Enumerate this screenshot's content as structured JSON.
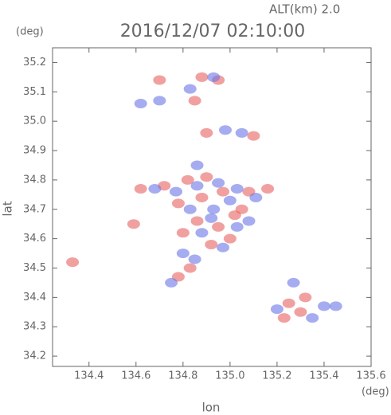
{
  "chart_data": {
    "type": "scatter",
    "title": "2016/12/07 02:10:00",
    "subtitle": "ALT(km) 2.0",
    "x_label": "lon",
    "y_label": "lat",
    "x_unit": "(deg)",
    "y_unit": "(deg)",
    "xlim": [
      134.245,
      135.6
    ],
    "ylim": [
      34.165,
      35.25
    ],
    "xticks": [
      134.4,
      134.6,
      134.8,
      {
        "value": 135,
        "label": "135.0"
      },
      135.2,
      135.4,
      135.6
    ],
    "yticks": [
      34.2,
      34.3,
      34.4,
      34.5,
      34.6,
      34.7,
      34.8,
      34.9,
      {
        "value": 35,
        "label": "35.0"
      },
      35.1,
      35.2
    ],
    "series": [
      {
        "color": "#e86060",
        "x": [
          134.88,
          134.95,
          134.7,
          134.85,
          134.9,
          135.1,
          134.33,
          134.59,
          134.62,
          134.72,
          134.82,
          134.9,
          134.78,
          134.88,
          134.97,
          135.05,
          134.86,
          134.95,
          135.0,
          134.92,
          134.83,
          134.78,
          135.16,
          135.08,
          135.25,
          135.32,
          135.23,
          135.3,
          134.8,
          135.02
        ],
        "y": [
          35.15,
          35.14,
          35.14,
          35.07,
          34.96,
          34.95,
          34.52,
          34.65,
          34.77,
          34.78,
          34.8,
          34.81,
          34.72,
          34.74,
          34.76,
          34.7,
          34.66,
          34.64,
          34.6,
          34.58,
          34.5,
          34.47,
          34.77,
          34.76,
          34.38,
          34.4,
          34.33,
          34.35,
          34.62,
          34.68
        ]
      },
      {
        "color": "#6a74e6",
        "x": [
          134.7,
          134.62,
          134.93,
          134.83,
          134.98,
          135.05,
          134.68,
          134.77,
          134.86,
          134.95,
          135.03,
          135.11,
          134.83,
          134.93,
          135.0,
          134.88,
          134.97,
          135.03,
          134.8,
          134.85,
          134.75,
          135.27,
          135.2,
          135.35,
          135.4,
          135.45,
          134.86,
          134.92,
          135.08
        ],
        "y": [
          35.07,
          35.06,
          35.15,
          35.11,
          34.97,
          34.96,
          34.77,
          34.76,
          34.78,
          34.79,
          34.77,
          34.74,
          34.7,
          34.7,
          34.73,
          34.62,
          34.57,
          34.64,
          34.55,
          34.53,
          34.45,
          34.45,
          34.36,
          34.33,
          34.37,
          34.37,
          34.85,
          34.67,
          34.66
        ]
      }
    ]
  }
}
